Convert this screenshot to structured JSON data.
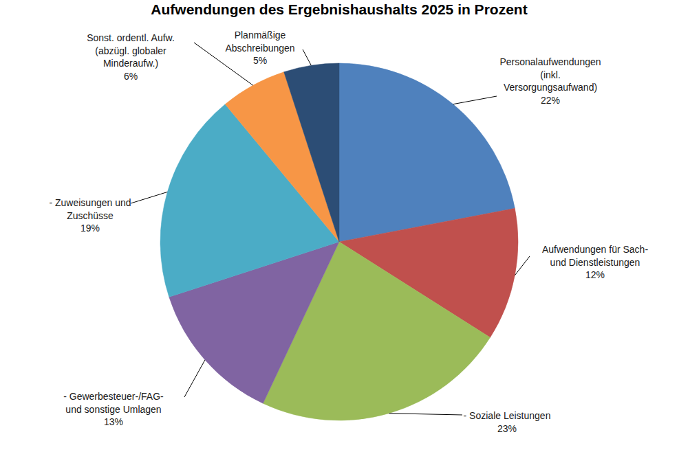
{
  "chart_data": {
    "type": "pie",
    "title": "Aufwendungen des Ergebnishaushalts 2025 in Prozent",
    "categories": [
      "Personalaufwendungen\n(inkl.\nVersorgungsaufwand)",
      "Aufwendungen für Sach-\nund Dienstleistungen",
      "- Soziale Leistungen",
      "- Gewerbesteuer-/FAG-\nund sonstige Umlagen",
      "- Zuweisungen und\nZuschüsse",
      "Sonst. ordentl. Aufw.\n(abzügl. globaler\nMinderaufw.)",
      "Planmäßige\nAbschreibungen"
    ],
    "values": [
      22,
      12,
      23,
      13,
      19,
      6,
      5
    ],
    "value_labels": [
      "22%",
      "12%",
      "23%",
      "13%",
      "19%",
      "6%",
      "5%"
    ],
    "colors": [
      "#4f81bd",
      "#c0504d",
      "#9bbb59",
      "#8064a2",
      "#4bacc6",
      "#f79646",
      "#2c4d75"
    ],
    "data_labels": true
  }
}
